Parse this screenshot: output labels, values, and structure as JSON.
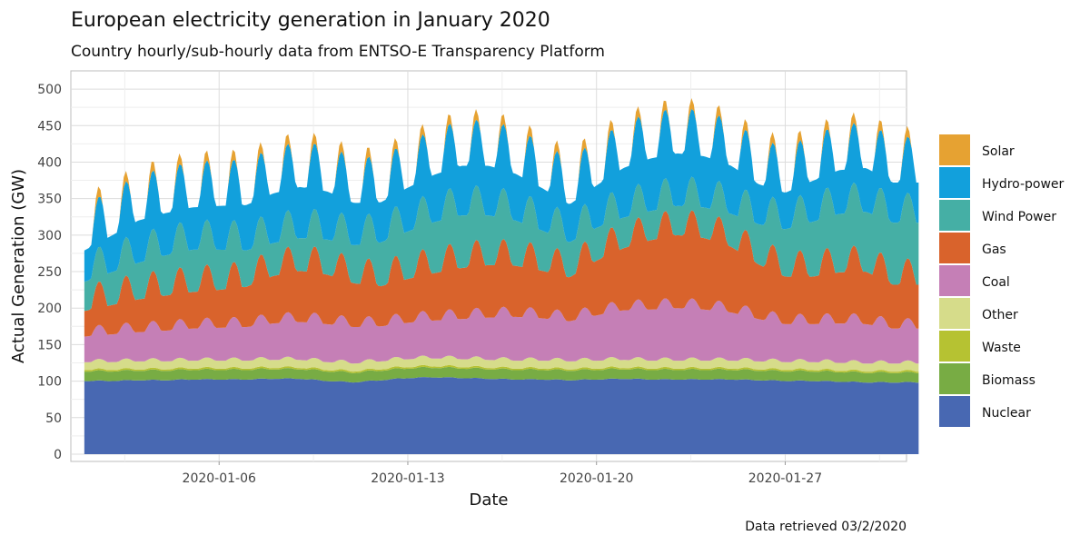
{
  "chart_data": {
    "type": "area",
    "title": "European electricity generation in January 2020",
    "subtitle": "Country hourly/sub-hourly data from ENTSO-E Transparency Platform",
    "xlabel": "Date",
    "ylabel": "Actual Generation (GW)",
    "caption": "Data retrieved 03/2/2020",
    "xlim": [
      0.5,
      31.5
    ],
    "ylim": [
      -10,
      525
    ],
    "yticks": [
      0,
      50,
      100,
      150,
      200,
      250,
      300,
      350,
      400,
      450,
      500
    ],
    "ytick_labels": [
      "0",
      "50",
      "100",
      "150",
      "200",
      "250",
      "300",
      "350",
      "400",
      "450",
      "500"
    ],
    "xticks": [
      6,
      13,
      20,
      27
    ],
    "xtick_labels": [
      "2020-01-06",
      "2020-01-13",
      "2020-01-20",
      "2020-01-27"
    ],
    "x_start": 1,
    "x_end": 31.95,
    "legend_position": "right",
    "series": [
      {
        "name": "Nuclear",
        "color": "#4868B2",
        "base": [
          100,
          100,
          101,
          101,
          102,
          102,
          102,
          103,
          103,
          100,
          98,
          101,
          104,
          105,
          104,
          103,
          102,
          102,
          101,
          102,
          103,
          102,
          102,
          102,
          102,
          101,
          100,
          100,
          99,
          98,
          98
        ],
        "amp": 1.0
      },
      {
        "name": "Biomass",
        "color": "#78AC44",
        "base": [
          13,
          13,
          13,
          13,
          13,
          13,
          13,
          13,
          13,
          13,
          13,
          13,
          13,
          13,
          13,
          13,
          13,
          13,
          13,
          13,
          13,
          13,
          13,
          13,
          13,
          13,
          13,
          13,
          13,
          13,
          13
        ],
        "amp": 1.0
      },
      {
        "name": "Waste",
        "color": "#B6C232",
        "base": [
          2,
          2,
          2,
          2,
          2,
          2,
          2,
          2,
          2,
          2,
          2,
          2,
          2,
          2,
          2,
          2,
          2,
          2,
          2,
          2,
          2,
          2,
          2,
          2,
          2,
          2,
          2,
          2,
          2,
          2,
          2
        ],
        "amp": 0.5
      },
      {
        "name": "Other",
        "color": "#D6DC8A",
        "base": [
          11,
          11,
          11,
          11,
          11,
          11,
          11,
          11,
          11,
          11,
          11,
          11,
          11,
          11,
          11,
          11,
          11,
          11,
          11,
          11,
          11,
          11,
          11,
          11,
          11,
          11,
          11,
          11,
          11,
          11,
          11
        ],
        "amp": 2.0
      },
      {
        "name": "Coal",
        "color": "#C57FB6",
        "base": [
          35,
          38,
          40,
          42,
          44,
          45,
          46,
          50,
          52,
          52,
          50,
          48,
          50,
          52,
          55,
          58,
          60,
          58,
          55,
          62,
          68,
          70,
          72,
          70,
          66,
          58,
          52,
          52,
          54,
          54,
          48
        ],
        "amp": 10.0
      },
      {
        "name": "Gas",
        "color": "#D9632C",
        "base": [
          35,
          40,
          45,
          48,
          50,
          52,
          55,
          65,
          70,
          68,
          60,
          55,
          60,
          65,
          70,
          72,
          70,
          65,
          60,
          75,
          85,
          95,
          100,
          98,
          90,
          75,
          65,
          65,
          70,
          72,
          60
        ],
        "amp": 22.0
      },
      {
        "name": "Wind Power",
        "color": "#45AFA5",
        "base": [
          40,
          45,
          50,
          55,
          58,
          55,
          50,
          45,
          45,
          48,
          52,
          60,
          65,
          70,
          72,
          68,
          62,
          55,
          48,
          45,
          42,
          40,
          40,
          42,
          45,
          55,
          65,
          75,
          80,
          82,
          85
        ],
        "amp": 5.0
      },
      {
        "name": "Hydro-power",
        "color": "#12A0DC",
        "base": [
          43,
          50,
          58,
          58,
          58,
          60,
          62,
          68,
          70,
          66,
          58,
          55,
          60,
          65,
          68,
          68,
          64,
          58,
          52,
          58,
          68,
          72,
          72,
          70,
          66,
          55,
          50,
          56,
          60,
          60,
          55
        ],
        "amp": 22.0
      },
      {
        "name": "Solar",
        "color": "#E6A232",
        "base": [
          0,
          0,
          0,
          0,
          0,
          0,
          0,
          0,
          0,
          0,
          0,
          0,
          0,
          0,
          0,
          0,
          0,
          0,
          0,
          0,
          0,
          0,
          0,
          0,
          0,
          0,
          0,
          0,
          0,
          0,
          0
        ],
        "amp": 15.0
      }
    ],
    "legend_order": [
      "Solar",
      "Hydro-power",
      "Wind Power",
      "Gas",
      "Coal",
      "Other",
      "Waste",
      "Biomass",
      "Nuclear"
    ]
  }
}
